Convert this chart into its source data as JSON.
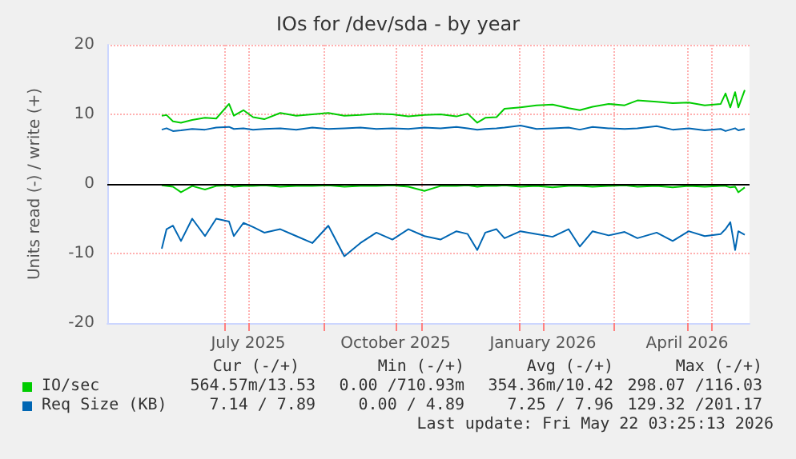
{
  "chart_data": {
    "type": "line",
    "title": "IOs for /dev/sda - by year",
    "ylabel": "Units read (-) / write (+)",
    "x": [
      "2025-05-23",
      "2025-05-26",
      "2025-05-30",
      "2025-06-04",
      "2025-06-11",
      "2025-06-19",
      "2025-06-26",
      "2025-07-04",
      "2025-07-07",
      "2025-07-13",
      "2025-07-19",
      "2025-07-26",
      "2025-08-05",
      "2025-08-15",
      "2025-08-25",
      "2025-09-04",
      "2025-09-14",
      "2025-09-24",
      "2025-10-04",
      "2025-10-14",
      "2025-10-24",
      "2025-11-03",
      "2025-11-13",
      "2025-11-23",
      "2025-11-30",
      "2025-12-06",
      "2025-12-11",
      "2025-12-18",
      "2025-12-23",
      "2026-01-02",
      "2026-01-12",
      "2026-01-22",
      "2026-02-01",
      "2026-02-08",
      "2026-02-16",
      "2026-02-26",
      "2026-03-08",
      "2026-03-16",
      "2026-03-28",
      "2026-04-07",
      "2026-04-17",
      "2026-04-27",
      "2026-05-07",
      "2026-05-10",
      "2026-05-13",
      "2026-05-16",
      "2026-05-18",
      "2026-05-22"
    ],
    "series": [
      {
        "name": "IO/sec",
        "color": "#00cc00",
        "values": [
          9.8,
          9.9,
          9.0,
          8.8,
          9.2,
          9.5,
          9.4,
          11.5,
          9.8,
          10.6,
          9.6,
          9.3,
          10.2,
          9.8,
          10.0,
          10.2,
          9.8,
          9.9,
          10.1,
          10.0,
          9.7,
          9.9,
          10.0,
          9.7,
          10.1,
          8.8,
          9.5,
          9.6,
          10.8,
          11.0,
          11.3,
          11.4,
          10.9,
          10.6,
          11.1,
          11.5,
          11.3,
          12.0,
          11.8,
          11.6,
          11.7,
          11.3,
          11.5,
          13.0,
          11.0,
          13.2,
          11.0,
          13.5
        ]
      },
      {
        "color": "#00cc00",
        "values": [
          -0.2,
          -0.3,
          -0.4,
          -1.2,
          -0.3,
          -0.8,
          -0.3,
          -0.2,
          -0.4,
          -0.3,
          -0.3,
          -0.2,
          -0.4,
          -0.3,
          -0.3,
          -0.2,
          -0.4,
          -0.3,
          -0.3,
          -0.2,
          -0.4,
          -1.0,
          -0.3,
          -0.3,
          -0.2,
          -0.4,
          -0.3,
          -0.3,
          -0.2,
          -0.4,
          -0.3,
          -0.5,
          -0.3,
          -0.3,
          -0.4,
          -0.3,
          -0.2,
          -0.4,
          -0.3,
          -0.5,
          -0.3,
          -0.4,
          -0.3,
          -0.3,
          -0.5,
          -0.4,
          -1.2,
          -0.5
        ]
      },
      {
        "name": "Req Size (KB)",
        "color": "#0066b3",
        "values": [
          7.8,
          8.0,
          7.6,
          7.7,
          7.9,
          7.8,
          8.1,
          8.2,
          7.9,
          8.0,
          7.8,
          7.9,
          8.0,
          7.8,
          8.1,
          7.9,
          8.0,
          8.1,
          7.9,
          8.0,
          7.9,
          8.1,
          8.0,
          8.2,
          8.0,
          7.8,
          7.9,
          8.0,
          8.1,
          8.4,
          7.9,
          8.0,
          8.1,
          7.8,
          8.2,
          8.0,
          7.9,
          8.0,
          8.3,
          7.8,
          8.0,
          7.7,
          7.9,
          7.6,
          7.8,
          8.0,
          7.7,
          7.9
        ]
      },
      {
        "color": "#0066b3",
        "values": [
          -9.3,
          -6.5,
          -6.0,
          -8.2,
          -5.0,
          -7.5,
          -5.0,
          -5.4,
          -7.5,
          -5.6,
          -6.2,
          -7.0,
          -6.5,
          -7.5,
          -8.5,
          -6.0,
          -10.4,
          -8.5,
          -7.0,
          -8.0,
          -6.5,
          -7.5,
          -8.0,
          -6.8,
          -7.2,
          -9.5,
          -7.0,
          -6.5,
          -7.8,
          -6.8,
          -7.2,
          -7.6,
          -6.5,
          -9.0,
          -6.8,
          -7.4,
          -6.9,
          -7.8,
          -7.0,
          -8.2,
          -6.8,
          -7.5,
          -7.2,
          -6.5,
          -5.5,
          -9.5,
          -6.8,
          -7.3
        ]
      }
    ],
    "xlim": [
      "2025-04-19",
      "2026-05-25"
    ],
    "xticks": [
      {
        "value": "2025-07-01",
        "label": null
      },
      {
        "value": "2025-07-16",
        "label": "July 2025"
      },
      {
        "value": "2025-09-01",
        "label": null
      },
      {
        "value": "2025-10-16",
        "label": "October 2025"
      },
      {
        "value": "2025-11-01",
        "label": null
      },
      {
        "value": "2026-01-01",
        "label": null
      },
      {
        "value": "2026-01-16",
        "label": "January 2026"
      },
      {
        "value": "2026-03-01",
        "label": null
      },
      {
        "value": "2026-04-16",
        "label": "April 2026"
      },
      {
        "value": "2026-05-01",
        "label": null
      }
    ],
    "ylim": [
      -20,
      20
    ],
    "yticks": [
      -20,
      -10,
      0,
      10,
      20
    ],
    "ref_lines": [
      {
        "axis": "y",
        "value": 0,
        "color": "#000000"
      }
    ],
    "grid": true,
    "legend": "bottom",
    "annotations": [
      "Cur (-/+)",
      "Min (-/+)",
      "Avg (-/+)",
      "Max (-/+)",
      "564.57m/13.53",
      "0.00 /710.93m",
      "354.36m/10.42",
      "298.07 /116.03",
      "7.14 / 7.89",
      "0.00 / 4.89",
      "7.25 / 7.96",
      "129.32 /201.17",
      "Last update: Fri May 22 03:25:13 2026"
    ]
  }
}
